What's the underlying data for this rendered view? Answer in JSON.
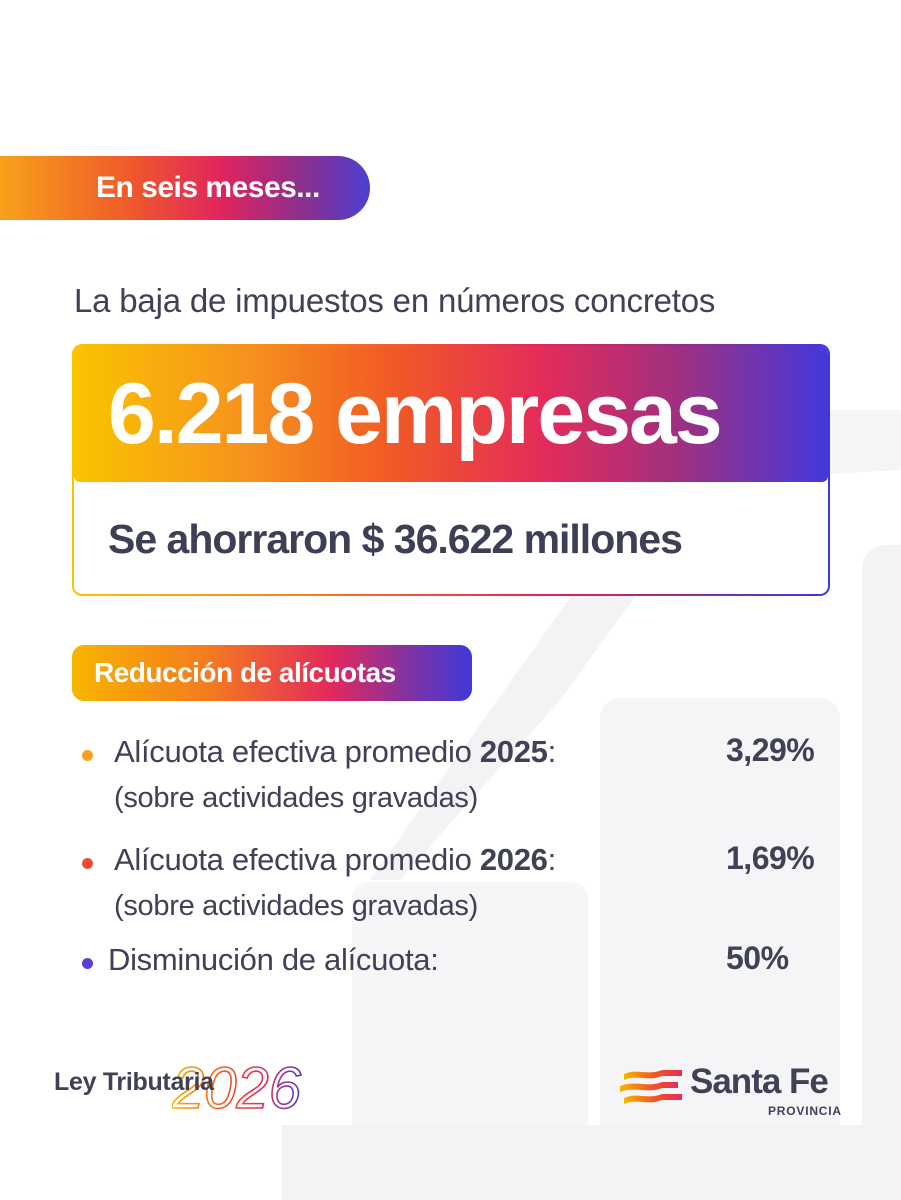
{
  "header": {
    "tag": "En seis meses..."
  },
  "subtitle": "La baja de impuestos en números concretos",
  "stat": {
    "headline": "6.218 empresas",
    "detail": "Se ahorraron $ 36.622 millones"
  },
  "section": {
    "label": "Reducción de alícuotas"
  },
  "items": [
    {
      "text": "Alícuota efectiva promedio ",
      "year": "2025",
      "colon": ":",
      "note": "(sobre actividades gravadas)",
      "value": "3,29%",
      "bullet_color": "#f7a21b"
    },
    {
      "text": "Alícuota efectiva promedio ",
      "year": "2026",
      "colon": ":",
      "note": "(sobre actividades gravadas)",
      "value": "1,69%",
      "bullet_color": "#ef4b3c"
    },
    {
      "text": "Disminución de alícuota:",
      "value": "50%",
      "bullet_color": "#5a3fd6"
    }
  ],
  "footer": {
    "law": "Ley Tributaria",
    "year": "2026",
    "brand_name": "Santa Fe",
    "brand_sub": "PROVINCIA"
  },
  "colors": {
    "text": "#3f4257",
    "gradient_yellow": "#f9c400",
    "gradient_orange": "#f15a24",
    "gradient_pink": "#e42c5a",
    "gradient_purple": "#8b2f8e",
    "gradient_blue": "#4338dc"
  }
}
